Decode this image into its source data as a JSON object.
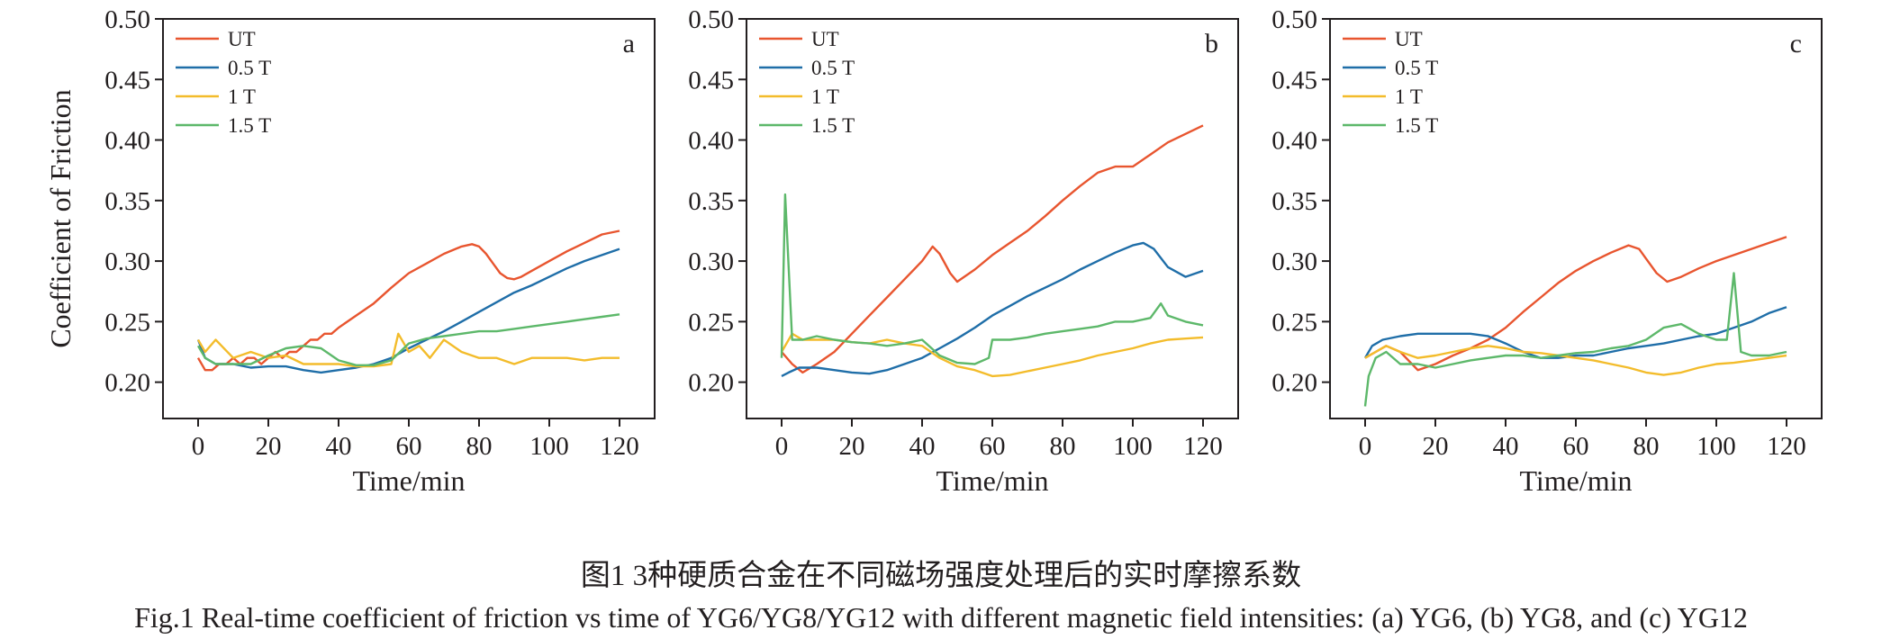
{
  "caption": {
    "cn": "图1  3种硬质合金在不同磁场强度处理后的实时摩擦系数",
    "en": "Fig.1  Real-time coefficient of friction vs time of YG6/YG8/YG12 with different magnetic field intensities: (a) YG6, (b) YG8, and (c) YG12"
  },
  "colors": {
    "UT": "#e8552f",
    "0.5 T": "#1f6ea8",
    "1 T": "#f3bc2b",
    "1.5 T": "#5db86a"
  },
  "chart_data": [
    {
      "type": "line",
      "panel_label": "a",
      "xlabel": "Time/min",
      "ylabel": "Coefficient of Friction",
      "xlim": [
        -10,
        130
      ],
      "ylim": [
        0.17,
        0.5
      ],
      "xticks": [
        0,
        20,
        40,
        60,
        80,
        100,
        120
      ],
      "yticks": [
        0.2,
        0.25,
        0.3,
        0.35,
        0.4,
        0.45,
        0.5
      ],
      "legend": "top-left",
      "grid": false,
      "series": [
        {
          "name": "UT",
          "x": [
            0,
            2,
            4,
            6,
            8,
            10,
            12,
            14,
            16,
            18,
            20,
            22,
            24,
            26,
            28,
            30,
            32,
            34,
            36,
            38,
            40,
            45,
            50,
            55,
            60,
            65,
            70,
            75,
            78,
            80,
            82,
            84,
            86,
            88,
            90,
            92,
            95,
            100,
            105,
            110,
            115,
            120
          ],
          "y": [
            0.22,
            0.21,
            0.21,
            0.215,
            0.215,
            0.22,
            0.215,
            0.22,
            0.22,
            0.215,
            0.22,
            0.225,
            0.22,
            0.225,
            0.225,
            0.23,
            0.235,
            0.235,
            0.24,
            0.24,
            0.245,
            0.255,
            0.265,
            0.278,
            0.29,
            0.298,
            0.306,
            0.312,
            0.314,
            0.312,
            0.306,
            0.298,
            0.29,
            0.286,
            0.285,
            0.287,
            0.292,
            0.3,
            0.308,
            0.315,
            0.322,
            0.325
          ]
        },
        {
          "name": "0.5 T",
          "x": [
            0,
            2,
            5,
            10,
            15,
            20,
            25,
            30,
            35,
            40,
            45,
            50,
            55,
            60,
            65,
            70,
            75,
            80,
            85,
            90,
            95,
            100,
            105,
            110,
            115,
            120
          ],
          "y": [
            0.235,
            0.22,
            0.215,
            0.215,
            0.212,
            0.213,
            0.213,
            0.21,
            0.208,
            0.21,
            0.212,
            0.215,
            0.22,
            0.228,
            0.235,
            0.242,
            0.25,
            0.258,
            0.266,
            0.274,
            0.28,
            0.287,
            0.294,
            0.3,
            0.305,
            0.31
          ]
        },
        {
          "name": "1 T",
          "x": [
            0,
            2,
            5,
            10,
            15,
            20,
            25,
            30,
            35,
            40,
            45,
            50,
            55,
            57,
            60,
            63,
            66,
            70,
            75,
            80,
            85,
            90,
            95,
            100,
            105,
            110,
            115,
            120
          ],
          "y": [
            0.235,
            0.225,
            0.235,
            0.22,
            0.225,
            0.22,
            0.222,
            0.215,
            0.215,
            0.215,
            0.213,
            0.213,
            0.215,
            0.24,
            0.225,
            0.23,
            0.22,
            0.235,
            0.225,
            0.22,
            0.22,
            0.215,
            0.22,
            0.22,
            0.22,
            0.218,
            0.22,
            0.22
          ]
        },
        {
          "name": "1.5 T",
          "x": [
            0,
            2,
            5,
            10,
            15,
            20,
            25,
            30,
            35,
            40,
            45,
            50,
            55,
            60,
            65,
            70,
            75,
            80,
            85,
            90,
            95,
            100,
            105,
            110,
            115,
            120
          ],
          "y": [
            0.23,
            0.22,
            0.215,
            0.215,
            0.215,
            0.222,
            0.228,
            0.23,
            0.228,
            0.218,
            0.214,
            0.214,
            0.218,
            0.232,
            0.236,
            0.238,
            0.24,
            0.242,
            0.242,
            0.244,
            0.246,
            0.248,
            0.25,
            0.252,
            0.254,
            0.256
          ]
        }
      ]
    },
    {
      "type": "line",
      "panel_label": "b",
      "xlabel": "Time/min",
      "ylabel": "",
      "xlim": [
        -10,
        130
      ],
      "ylim": [
        0.17,
        0.5
      ],
      "xticks": [
        0,
        20,
        40,
        60,
        80,
        100,
        120
      ],
      "yticks": [
        0.2,
        0.25,
        0.3,
        0.35,
        0.4,
        0.45,
        0.5
      ],
      "legend": "top-left",
      "grid": false,
      "series": [
        {
          "name": "UT",
          "x": [
            0,
            3,
            6,
            10,
            15,
            20,
            25,
            30,
            35,
            40,
            43,
            45,
            48,
            50,
            55,
            60,
            65,
            70,
            75,
            80,
            85,
            90,
            95,
            100,
            105,
            110,
            115,
            120
          ],
          "y": [
            0.225,
            0.215,
            0.208,
            0.215,
            0.225,
            0.24,
            0.255,
            0.27,
            0.285,
            0.3,
            0.312,
            0.306,
            0.29,
            0.283,
            0.293,
            0.305,
            0.315,
            0.325,
            0.337,
            0.35,
            0.362,
            0.373,
            0.378,
            0.378,
            0.388,
            0.398,
            0.405,
            0.412
          ]
        },
        {
          "name": "0.5 T",
          "x": [
            0,
            2,
            5,
            10,
            15,
            20,
            25,
            30,
            35,
            40,
            45,
            50,
            55,
            60,
            65,
            70,
            75,
            80,
            85,
            90,
            95,
            100,
            103,
            106,
            110,
            115,
            120
          ],
          "y": [
            0.205,
            0.208,
            0.212,
            0.212,
            0.21,
            0.208,
            0.207,
            0.21,
            0.215,
            0.22,
            0.228,
            0.236,
            0.245,
            0.255,
            0.263,
            0.271,
            0.278,
            0.285,
            0.293,
            0.3,
            0.307,
            0.313,
            0.315,
            0.31,
            0.295,
            0.287,
            0.292
          ]
        },
        {
          "name": "1 T",
          "x": [
            0,
            3,
            6,
            10,
            15,
            20,
            25,
            30,
            35,
            40,
            45,
            50,
            55,
            60,
            65,
            70,
            75,
            80,
            85,
            90,
            95,
            100,
            105,
            110,
            115,
            120
          ],
          "y": [
            0.225,
            0.24,
            0.235,
            0.235,
            0.235,
            0.233,
            0.232,
            0.235,
            0.232,
            0.23,
            0.22,
            0.213,
            0.21,
            0.205,
            0.206,
            0.209,
            0.212,
            0.215,
            0.218,
            0.222,
            0.225,
            0.228,
            0.232,
            0.235,
            0.236,
            0.237
          ]
        },
        {
          "name": "1.5 T",
          "x": [
            0,
            1,
            3,
            6,
            10,
            15,
            20,
            25,
            30,
            35,
            40,
            45,
            50,
            55,
            59,
            60,
            65,
            70,
            75,
            80,
            85,
            90,
            95,
            100,
            105,
            108,
            110,
            115,
            120
          ],
          "y": [
            0.22,
            0.355,
            0.235,
            0.235,
            0.238,
            0.235,
            0.233,
            0.232,
            0.23,
            0.232,
            0.235,
            0.222,
            0.216,
            0.215,
            0.22,
            0.235,
            0.235,
            0.237,
            0.24,
            0.242,
            0.244,
            0.246,
            0.25,
            0.25,
            0.253,
            0.265,
            0.255,
            0.25,
            0.247
          ]
        }
      ]
    },
    {
      "type": "line",
      "panel_label": "c",
      "xlabel": "Time/min",
      "ylabel": "",
      "xlim": [
        -10,
        130
      ],
      "ylim": [
        0.17,
        0.5
      ],
      "xticks": [
        0,
        20,
        40,
        60,
        80,
        100,
        120
      ],
      "yticks": [
        0.2,
        0.25,
        0.3,
        0.35,
        0.4,
        0.45,
        0.5
      ],
      "legend": "top-left",
      "grid": false,
      "series": [
        {
          "name": "UT",
          "x": [
            0,
            3,
            6,
            10,
            15,
            20,
            25,
            30,
            35,
            40,
            45,
            50,
            55,
            60,
            65,
            70,
            75,
            78,
            80,
            83,
            86,
            90,
            95,
            100,
            105,
            110,
            115,
            120
          ],
          "y": [
            0.22,
            0.225,
            0.23,
            0.225,
            0.21,
            0.215,
            0.222,
            0.228,
            0.235,
            0.245,
            0.258,
            0.27,
            0.282,
            0.292,
            0.3,
            0.307,
            0.313,
            0.31,
            0.302,
            0.29,
            0.283,
            0.287,
            0.294,
            0.3,
            0.305,
            0.31,
            0.315,
            0.32
          ]
        },
        {
          "name": "0.5 T",
          "x": [
            0,
            2,
            5,
            10,
            15,
            20,
            25,
            30,
            35,
            40,
            45,
            50,
            55,
            60,
            65,
            70,
            75,
            80,
            85,
            90,
            95,
            100,
            105,
            110,
            115,
            120
          ],
          "y": [
            0.22,
            0.23,
            0.235,
            0.238,
            0.24,
            0.24,
            0.24,
            0.24,
            0.238,
            0.232,
            0.225,
            0.22,
            0.22,
            0.222,
            0.222,
            0.225,
            0.228,
            0.23,
            0.232,
            0.235,
            0.238,
            0.24,
            0.245,
            0.25,
            0.257,
            0.262
          ]
        },
        {
          "name": "1 T",
          "x": [
            0,
            3,
            6,
            10,
            15,
            20,
            25,
            30,
            35,
            40,
            45,
            50,
            55,
            60,
            65,
            70,
            75,
            80,
            85,
            90,
            95,
            100,
            105,
            110,
            115,
            120
          ],
          "y": [
            0.22,
            0.225,
            0.23,
            0.225,
            0.22,
            0.222,
            0.225,
            0.228,
            0.23,
            0.228,
            0.225,
            0.224,
            0.222,
            0.22,
            0.218,
            0.215,
            0.212,
            0.208,
            0.206,
            0.208,
            0.212,
            0.215,
            0.216,
            0.218,
            0.22,
            0.222
          ]
        },
        {
          "name": "1.5 T",
          "x": [
            0,
            1,
            3,
            6,
            10,
            15,
            20,
            25,
            30,
            35,
            40,
            45,
            50,
            55,
            60,
            65,
            70,
            75,
            80,
            85,
            90,
            95,
            100,
            103,
            105,
            107,
            110,
            115,
            120
          ],
          "y": [
            0.18,
            0.205,
            0.22,
            0.225,
            0.215,
            0.215,
            0.212,
            0.215,
            0.218,
            0.22,
            0.222,
            0.222,
            0.22,
            0.222,
            0.224,
            0.225,
            0.228,
            0.23,
            0.235,
            0.245,
            0.248,
            0.24,
            0.235,
            0.235,
            0.29,
            0.225,
            0.222,
            0.222,
            0.225
          ]
        }
      ]
    }
  ]
}
